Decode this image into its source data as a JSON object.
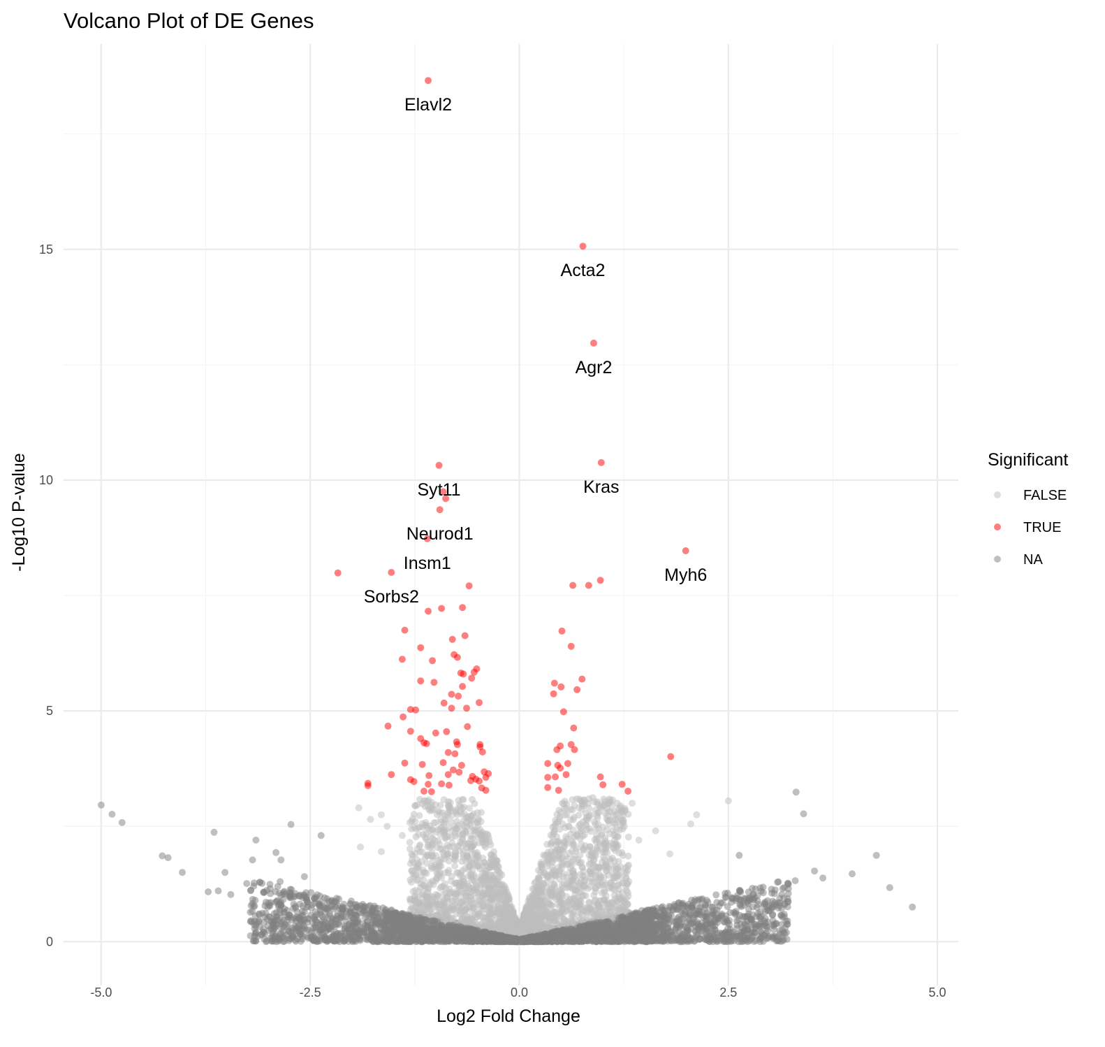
{
  "chart_data": {
    "type": "scatter",
    "title": "Volcano Plot of DE Genes",
    "xlabel": "Log2 Fold Change",
    "ylabel": "-Log10 P-value",
    "xlim": [
      -5.45,
      5.25
    ],
    "ylim": [
      -0.95,
      19.45
    ],
    "x_ticks": [
      -5.0,
      -2.5,
      0.0,
      2.5,
      5.0
    ],
    "x_tick_labels": [
      "-5.0",
      "-2.5",
      "0.0",
      "2.5",
      "5.0"
    ],
    "y_ticks": [
      0,
      5,
      10,
      15
    ],
    "y_tick_labels": [
      "0",
      "5",
      "10",
      "15"
    ],
    "grid": true,
    "legend": {
      "title": "Significant",
      "placement": "right",
      "entries": [
        {
          "label": "FALSE",
          "color": "#bebebe"
        },
        {
          "label": "TRUE",
          "color": "#ff0000"
        },
        {
          "label": "NA",
          "color": "#7f7f7f"
        }
      ]
    },
    "point_alpha": 0.5,
    "labeled_genes": [
      {
        "gene": "Elavl2",
        "x": -1.09,
        "y": 18.66
      },
      {
        "gene": "Acta2",
        "x": 0.76,
        "y": 15.07
      },
      {
        "gene": "Agr2",
        "x": 0.89,
        "y": 12.97
      },
      {
        "gene": "Kras",
        "x": 0.98,
        "y": 10.38
      },
      {
        "gene": "Syt11",
        "x": -0.96,
        "y": 10.32
      },
      {
        "gene": "Neurod1",
        "x": -0.95,
        "y": 9.36
      },
      {
        "gene": "Insm1",
        "x": -1.1,
        "y": 8.73
      },
      {
        "gene": "Sorbs2",
        "x": -1.53,
        "y": 8.0
      },
      {
        "gene": "Myh6",
        "x": 1.99,
        "y": 8.47
      }
    ],
    "series": [
      {
        "name": "TRUE",
        "color": "#ff0000",
        "points": [
          [
            -0.88,
            9.6
          ],
          [
            -0.91,
            9.75
          ],
          [
            -2.17,
            7.99
          ],
          [
            0.64,
            7.72
          ],
          [
            0.83,
            7.72
          ],
          [
            0.97,
            7.83
          ],
          [
            -0.6,
            7.71
          ],
          [
            -1.09,
            7.16
          ],
          [
            -0.93,
            7.22
          ],
          [
            -0.68,
            7.24
          ],
          [
            -1.37,
            6.75
          ],
          [
            -0.65,
            6.63
          ],
          [
            -0.8,
            6.55
          ],
          [
            0.51,
            6.73
          ],
          [
            0.62,
            6.4
          ],
          [
            -1.18,
            6.37
          ],
          [
            -1.4,
            6.12
          ],
          [
            -1.04,
            6.09
          ],
          [
            -0.78,
            6.22
          ],
          [
            -0.74,
            6.16
          ],
          [
            -0.51,
            5.91
          ],
          [
            -0.54,
            5.84
          ],
          [
            -0.7,
            5.82
          ],
          [
            -0.67,
            5.8
          ],
          [
            -1.18,
            5.65
          ],
          [
            -1.02,
            5.62
          ],
          [
            -0.68,
            5.53
          ],
          [
            -0.57,
            5.71
          ],
          [
            0.42,
            5.6
          ],
          [
            0.5,
            5.52
          ],
          [
            0.75,
            5.69
          ],
          [
            0.69,
            5.46
          ],
          [
            -0.81,
            5.36
          ],
          [
            -0.73,
            5.32
          ],
          [
            0.41,
            5.37
          ],
          [
            -0.9,
            5.17
          ],
          [
            -0.48,
            5.18
          ],
          [
            -0.81,
            5.06
          ],
          [
            -0.63,
            5.06
          ],
          [
            -1.24,
            5.02
          ],
          [
            -1.3,
            5.03
          ],
          [
            0.53,
            4.98
          ],
          [
            -1.39,
            4.87
          ],
          [
            -1.57,
            4.67
          ],
          [
            -0.62,
            4.66
          ],
          [
            0.65,
            4.63
          ],
          [
            -1.3,
            4.56
          ],
          [
            -1.0,
            4.52
          ],
          [
            -0.87,
            4.55
          ],
          [
            -1.18,
            4.4
          ],
          [
            -0.75,
            4.33
          ],
          [
            -1.14,
            4.31
          ],
          [
            -1.11,
            4.29
          ],
          [
            -0.74,
            4.27
          ],
          [
            -0.47,
            4.27
          ],
          [
            -0.47,
            4.22
          ],
          [
            0.49,
            4.24
          ],
          [
            0.62,
            4.27
          ],
          [
            0.66,
            4.16
          ],
          [
            0.45,
            4.16
          ],
          [
            -0.85,
            4.1
          ],
          [
            -0.77,
            4.07
          ],
          [
            -0.44,
            4.11
          ],
          [
            -1.37,
            3.87
          ],
          [
            -1.16,
            3.84
          ],
          [
            -0.91,
            3.88
          ],
          [
            -0.69,
            3.82
          ],
          [
            -0.79,
            3.72
          ],
          [
            -0.85,
            3.62
          ],
          [
            -0.72,
            3.67
          ],
          [
            -0.56,
            3.58
          ],
          [
            -0.42,
            3.68
          ],
          [
            -0.4,
            3.56
          ],
          [
            -0.37,
            3.64
          ],
          [
            -0.52,
            3.52
          ],
          [
            -0.48,
            3.48
          ],
          [
            -0.58,
            3.49
          ],
          [
            0.49,
            3.76
          ],
          [
            0.46,
            3.82
          ],
          [
            0.34,
            3.86
          ],
          [
            0.58,
            3.86
          ],
          [
            0.56,
            3.62
          ],
          [
            0.34,
            3.56
          ],
          [
            0.43,
            3.57
          ],
          [
            1.81,
            4.01
          ],
          [
            0.97,
            3.57
          ],
          [
            1.0,
            3.4
          ],
          [
            1.23,
            3.41
          ],
          [
            1.3,
            3.26
          ],
          [
            -1.53,
            3.62
          ],
          [
            -1.81,
            3.43
          ],
          [
            -1.81,
            3.38
          ],
          [
            -1.3,
            3.51
          ],
          [
            -1.26,
            3.47
          ],
          [
            -1.08,
            3.6
          ],
          [
            -1.09,
            3.41
          ],
          [
            -0.93,
            3.42
          ],
          [
            -0.84,
            3.39
          ],
          [
            -1.14,
            3.26
          ],
          [
            -1.05,
            3.25
          ],
          [
            0.34,
            3.34
          ],
          [
            0.47,
            3.28
          ],
          [
            -0.45,
            3.33
          ],
          [
            -0.4,
            3.28
          ]
        ]
      },
      {
        "name": "FALSE",
        "color": "#bebebe",
        "regions": [
          {
            "x": [
              -1.45,
              -0.02
            ],
            "y": [
              0.25,
              3.3
            ]
          },
          {
            "x": [
              0.02,
              1.75
            ],
            "y": [
              0.25,
              3.2
            ]
          }
        ],
        "outliers": [
          [
            -1.92,
            2.9
          ],
          [
            -1.78,
            2.65
          ],
          [
            -1.65,
            2.75
          ],
          [
            -1.58,
            2.5
          ],
          [
            -1.4,
            2.3
          ],
          [
            -1.9,
            2.05
          ],
          [
            -1.65,
            1.95
          ],
          [
            0.88,
            3.12
          ],
          [
            1.15,
            2.55
          ],
          [
            1.35,
            3.0
          ],
          [
            1.43,
            2.2
          ],
          [
            1.63,
            2.4
          ],
          [
            1.8,
            1.9
          ],
          [
            2.05,
            2.55
          ],
          [
            2.12,
            2.75
          ],
          [
            2.5,
            3.05
          ],
          [
            1.27,
            2.85
          ],
          [
            0.95,
            2.45
          ]
        ]
      },
      {
        "name": "NA",
        "color": "#7f7f7f",
        "regions": [
          {
            "x": [
              -4.0,
              -0.02
            ],
            "y": [
              0.0,
              1.6
            ]
          },
          {
            "x": [
              0.02,
              4.0
            ],
            "y": [
              0.0,
              1.6
            ]
          }
        ],
        "outliers": [
          [
            -5.0,
            2.96
          ],
          [
            -4.87,
            2.76
          ],
          [
            -4.75,
            2.58
          ],
          [
            -3.65,
            2.37
          ],
          [
            -2.73,
            2.54
          ],
          [
            -2.37,
            2.3
          ],
          [
            -3.15,
            2.2
          ],
          [
            -4.27,
            1.86
          ],
          [
            -4.2,
            1.82
          ],
          [
            -4.03,
            1.5
          ],
          [
            -3.19,
            1.77
          ],
          [
            -2.91,
            1.93
          ],
          [
            -2.85,
            1.77
          ],
          [
            -3.52,
            1.5
          ],
          [
            -3.26,
            1.26
          ],
          [
            -2.86,
            1.3
          ],
          [
            -2.57,
            1.41
          ],
          [
            -3.72,
            1.08
          ],
          [
            -3.6,
            1.1
          ],
          [
            -3.45,
            1.02
          ],
          [
            3.31,
            3.24
          ],
          [
            3.4,
            2.77
          ],
          [
            2.63,
            1.87
          ],
          [
            4.27,
            1.87
          ],
          [
            3.53,
            1.53
          ],
          [
            3.98,
            1.47
          ],
          [
            3.63,
            1.38
          ],
          [
            4.43,
            1.17
          ],
          [
            4.7,
            0.75
          ],
          [
            3.3,
            1.32
          ],
          [
            3.15,
            1.15
          ],
          [
            2.85,
            1.0
          ],
          [
            3.02,
            1.05
          ]
        ]
      }
    ]
  }
}
